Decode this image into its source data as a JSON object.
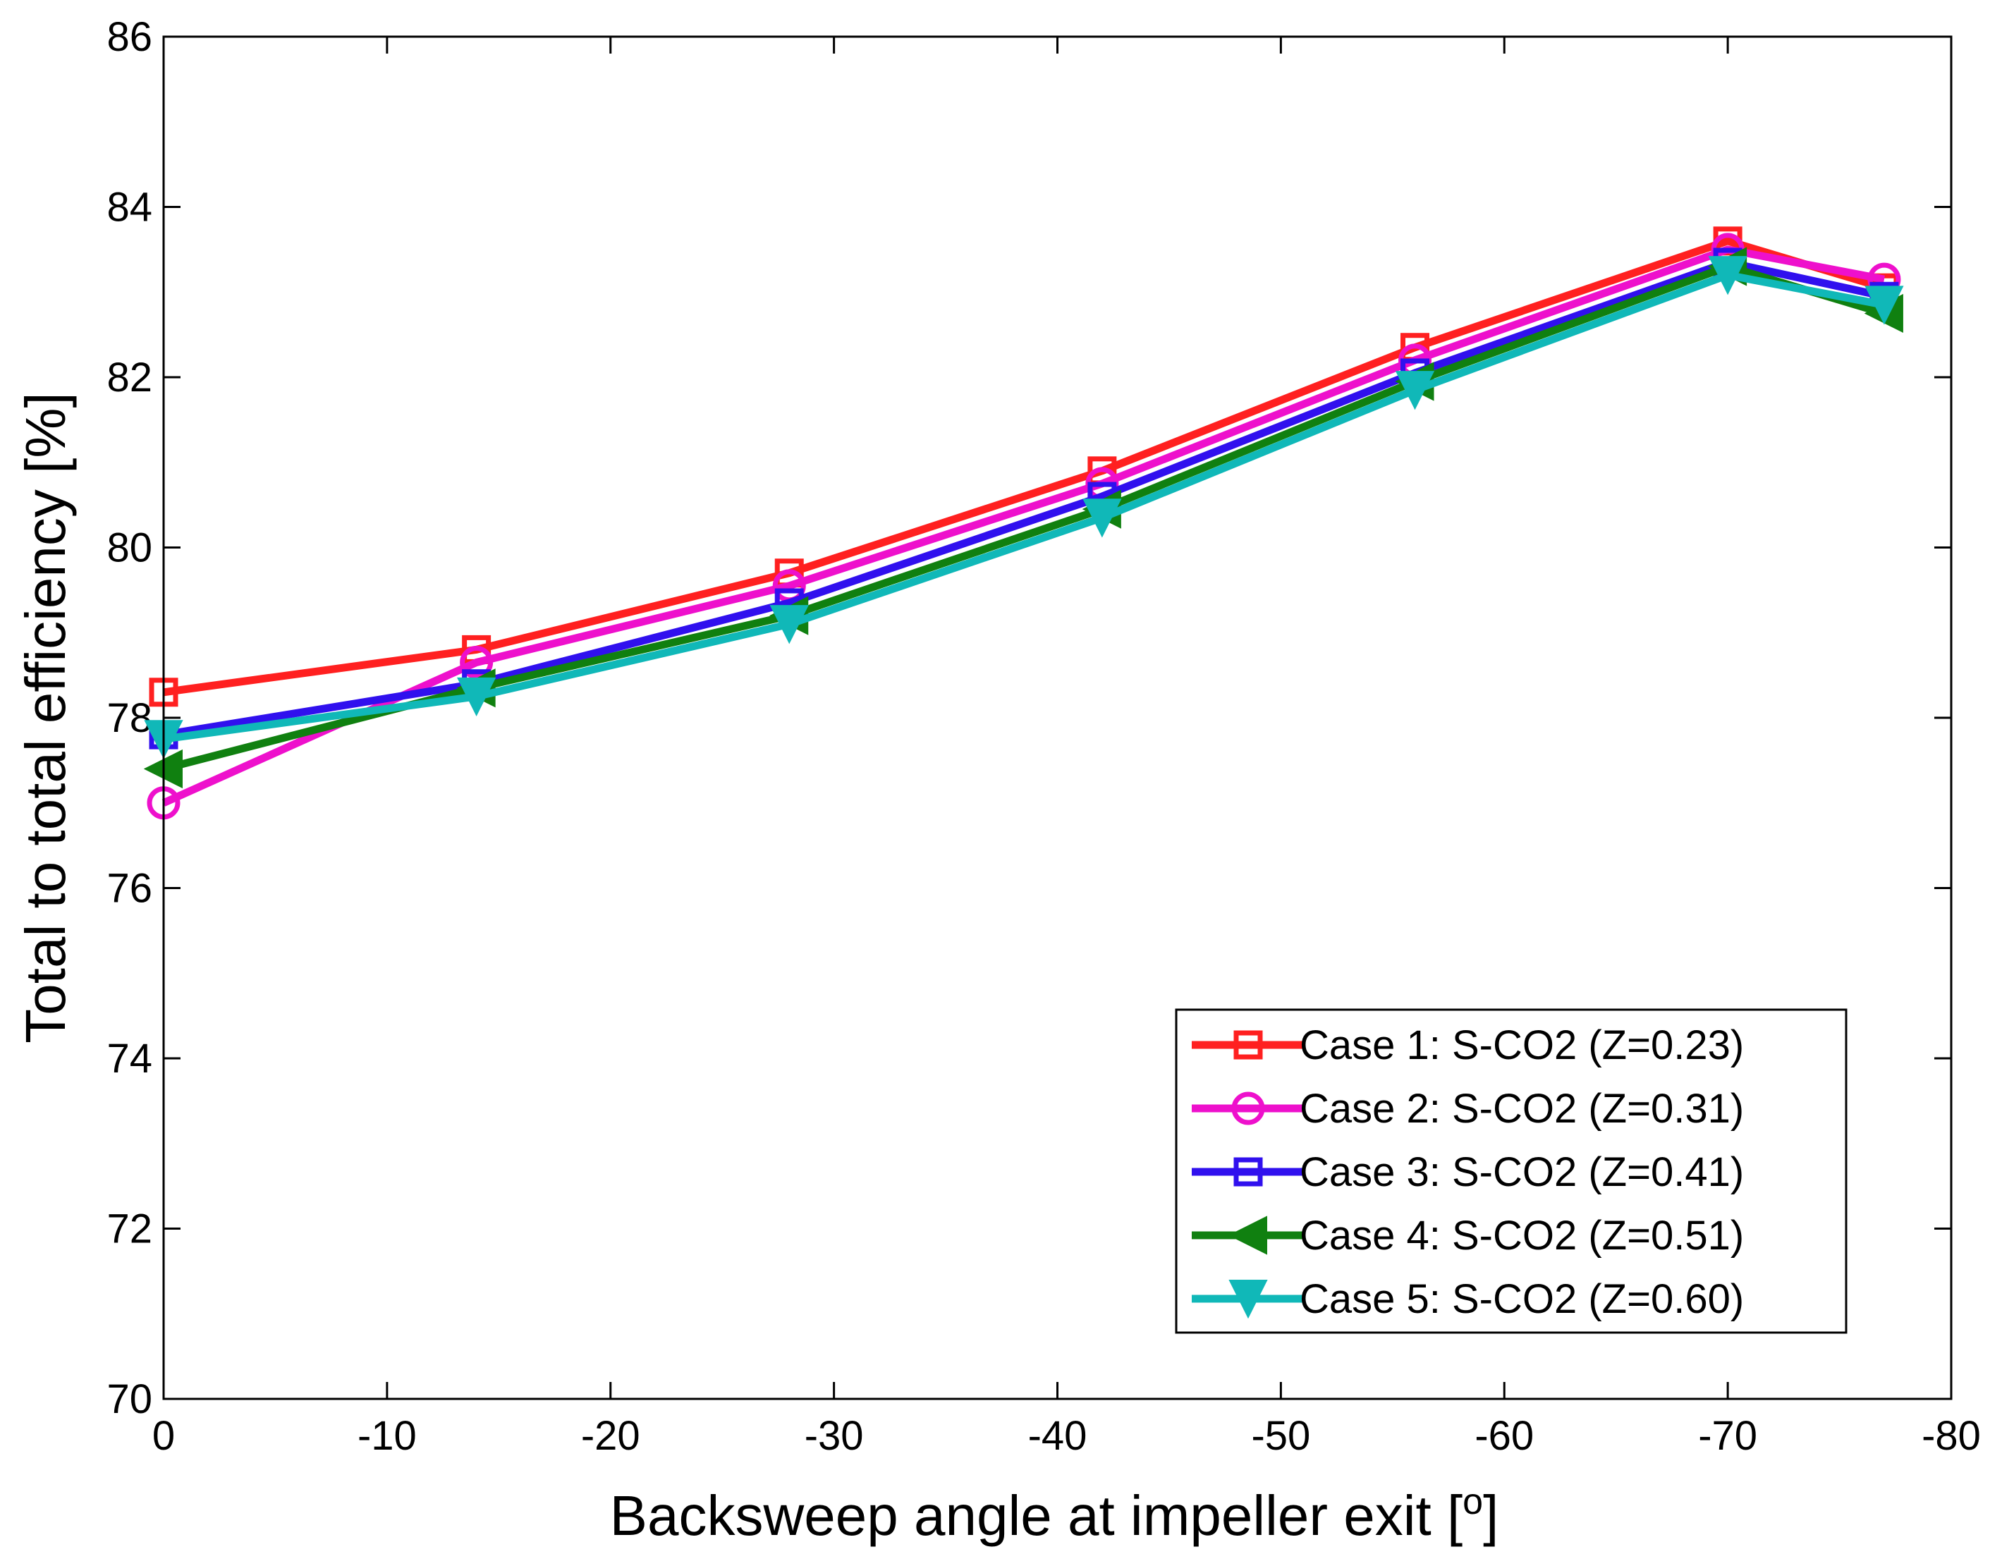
{
  "chart_data": {
    "type": "line",
    "xlabel": "Backsweep angle at impeller exit [",
    "xlabel_sup": "o",
    "xlabel_end": "]",
    "ylabel": "Total to total efficiency [%]",
    "xlim": [
      0,
      -80
    ],
    "ylim": [
      70,
      86
    ],
    "xticks": [
      0,
      -10,
      -20,
      -30,
      -40,
      -50,
      -60,
      -70,
      -80
    ],
    "yticks": [
      70,
      72,
      74,
      76,
      78,
      80,
      82,
      84,
      86
    ],
    "grid": false,
    "legend_position": "bottom-right",
    "x": [
      0,
      -14,
      -28,
      -42,
      -56,
      -70,
      -77
    ],
    "series": [
      {
        "name": "Case 1: S-CO2 (Z=0.23)",
        "color": "#ff2020",
        "marker": "square",
        "values": [
          78.3,
          78.8,
          79.7,
          80.9,
          82.35,
          83.6,
          83.05
        ]
      },
      {
        "name": "Case 2: S-CO2 (Z=0.31)",
        "color": "#ee10cc",
        "marker": "circle",
        "values": [
          77.0,
          78.65,
          79.55,
          80.75,
          82.2,
          83.5,
          83.15
        ]
      },
      {
        "name": "Case 3: S-CO2 (Z=0.41)",
        "color": "#3010ee",
        "marker": "square",
        "values": [
          77.8,
          78.4,
          79.35,
          80.6,
          82.05,
          83.35,
          82.95
        ]
      },
      {
        "name": "Case 4: S-CO2 (Z=0.51)",
        "color": "#108010",
        "marker": "triangle-left",
        "values": [
          77.4,
          78.35,
          79.2,
          80.45,
          81.95,
          83.3,
          82.75
        ]
      },
      {
        "name": "Case 5: S-CO2 (Z=0.60)",
        "color": "#10b8b8",
        "marker": "triangle-down",
        "values": [
          77.75,
          78.25,
          79.1,
          80.35,
          81.85,
          83.2,
          82.85
        ]
      }
    ]
  }
}
